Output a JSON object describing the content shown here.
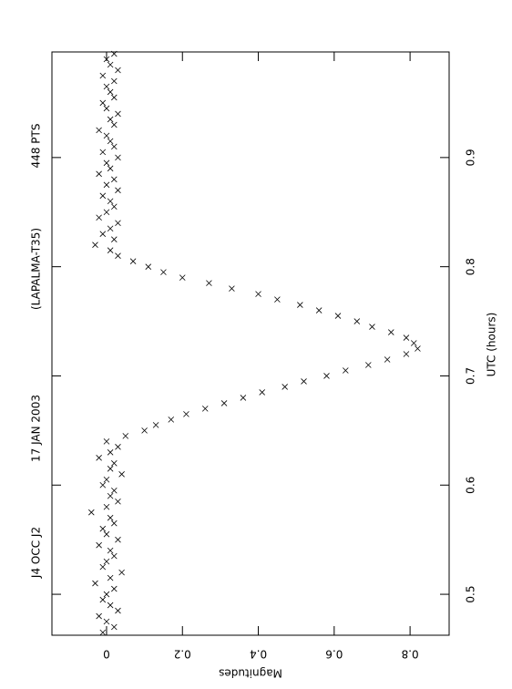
{
  "chart_data": {
    "type": "scatter",
    "title": "J4 OCC J2",
    "annotations": [
      "17 JAN 2003",
      "(LAPALMA-T35)",
      "448 PTS"
    ],
    "x_label": "UTC (hours)",
    "y_label": "Magnitudes",
    "xlim": [
      0.4625,
      0.9967
    ],
    "ylim": [
      -0.144,
      0.903
    ],
    "xticks": [
      0.5,
      0.6,
      0.7,
      0.8,
      0.9
    ],
    "yticks": [
      0,
      0.2,
      0.4,
      0.6,
      0.8
    ],
    "x": [
      0.465,
      0.47,
      0.475,
      0.48,
      0.485,
      0.49,
      0.495,
      0.5,
      0.505,
      0.51,
      0.515,
      0.52,
      0.525,
      0.53,
      0.535,
      0.54,
      0.545,
      0.55,
      0.555,
      0.56,
      0.565,
      0.57,
      0.575,
      0.58,
      0.585,
      0.59,
      0.595,
      0.6,
      0.605,
      0.61,
      0.615,
      0.62,
      0.625,
      0.63,
      0.635,
      0.64,
      0.645,
      0.65,
      0.655,
      0.66,
      0.665,
      0.67,
      0.675,
      0.68,
      0.685,
      0.69,
      0.695,
      0.7,
      0.705,
      0.71,
      0.715,
      0.72,
      0.725,
      0.73,
      0.735,
      0.74,
      0.745,
      0.75,
      0.755,
      0.76,
      0.765,
      0.77,
      0.775,
      0.78,
      0.785,
      0.79,
      0.795,
      0.8,
      0.805,
      0.81,
      0.815,
      0.82,
      0.825,
      0.83,
      0.835,
      0.84,
      0.845,
      0.85,
      0.855,
      0.86,
      0.865,
      0.87,
      0.875,
      0.88,
      0.885,
      0.89,
      0.895,
      0.9,
      0.905,
      0.91,
      0.915,
      0.92,
      0.925,
      0.93,
      0.935,
      0.94,
      0.945,
      0.95,
      0.955,
      0.96,
      0.965,
      0.97,
      0.975,
      0.98,
      0.985,
      0.99,
      0.995
    ],
    "series": [
      {
        "color": "#000000",
        "values": [
          -0.01,
          0.02,
          0.0,
          -0.02,
          0.03,
          0.01,
          -0.01,
          0.0,
          0.02,
          -0.03,
          0.01,
          0.04,
          -0.01,
          0.0,
          0.02,
          0.01,
          -0.02,
          0.03,
          0.0,
          -0.01,
          0.02,
          0.01,
          -0.04,
          0.0,
          0.03,
          0.01,
          0.02,
          -0.01,
          0.0,
          0.04,
          0.01,
          0.02,
          -0.02,
          0.01,
          0.03,
          0.0,
          0.05,
          0.1,
          0.13,
          0.17,
          0.21,
          0.26,
          0.31,
          0.36,
          0.41,
          0.47,
          0.52,
          0.58,
          0.63,
          0.69,
          0.74,
          0.79,
          0.82,
          0.81,
          0.79,
          0.75,
          0.7,
          0.66,
          0.61,
          0.56,
          0.51,
          0.45,
          0.4,
          0.33,
          0.27,
          0.2,
          0.15,
          0.11,
          0.07,
          0.03,
          0.01,
          -0.03,
          0.02,
          -0.01,
          0.01,
          0.03,
          -0.02,
          0.0,
          0.02,
          0.01,
          -0.01,
          0.03,
          0.0,
          0.02,
          -0.02,
          0.01,
          0.0,
          0.03,
          -0.01,
          0.02,
          0.01,
          0.0,
          -0.02,
          0.02,
          0.01,
          0.03,
          0.0,
          -0.01,
          0.02,
          0.01,
          0.0,
          0.02,
          -0.01,
          0.03,
          0.01,
          0.0,
          0.02
        ]
      }
    ]
  }
}
